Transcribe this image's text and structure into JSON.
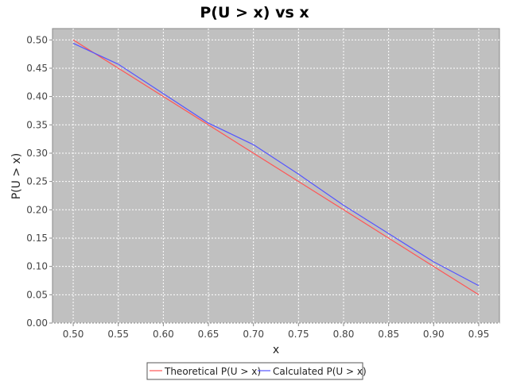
{
  "chart_data": {
    "type": "line",
    "title": "P(U > x) vs x",
    "xlabel": "x",
    "ylabel": "P(U > x)",
    "xlim": [
      0.477,
      0.973
    ],
    "ylim": [
      0.0,
      0.52
    ],
    "x_ticks": [
      "0.50",
      "0.55",
      "0.60",
      "0.65",
      "0.70",
      "0.75",
      "0.80",
      "0.85",
      "0.90",
      "0.95"
    ],
    "y_ticks": [
      "0.00",
      "0.05",
      "0.10",
      "0.15",
      "0.20",
      "0.25",
      "0.30",
      "0.35",
      "0.40",
      "0.45",
      "0.50"
    ],
    "x": [
      0.5,
      0.55,
      0.6,
      0.65,
      0.7,
      0.75,
      0.8,
      0.85,
      0.9,
      0.95
    ],
    "series": [
      {
        "name": "Theoretical P(U > x)",
        "color": "#ff5555",
        "values": [
          0.5,
          0.45,
          0.4,
          0.35,
          0.3,
          0.25,
          0.2,
          0.15,
          0.1,
          0.05
        ]
      },
      {
        "name": "Calculated P(U > x)",
        "color": "#5555ff",
        "values": [
          0.494,
          0.457,
          0.405,
          0.353,
          0.315,
          0.263,
          0.208,
          0.158,
          0.108,
          0.066
        ]
      }
    ],
    "plot_background": "#c0c0c0",
    "gridlines": true,
    "legend_position": "bottom"
  }
}
